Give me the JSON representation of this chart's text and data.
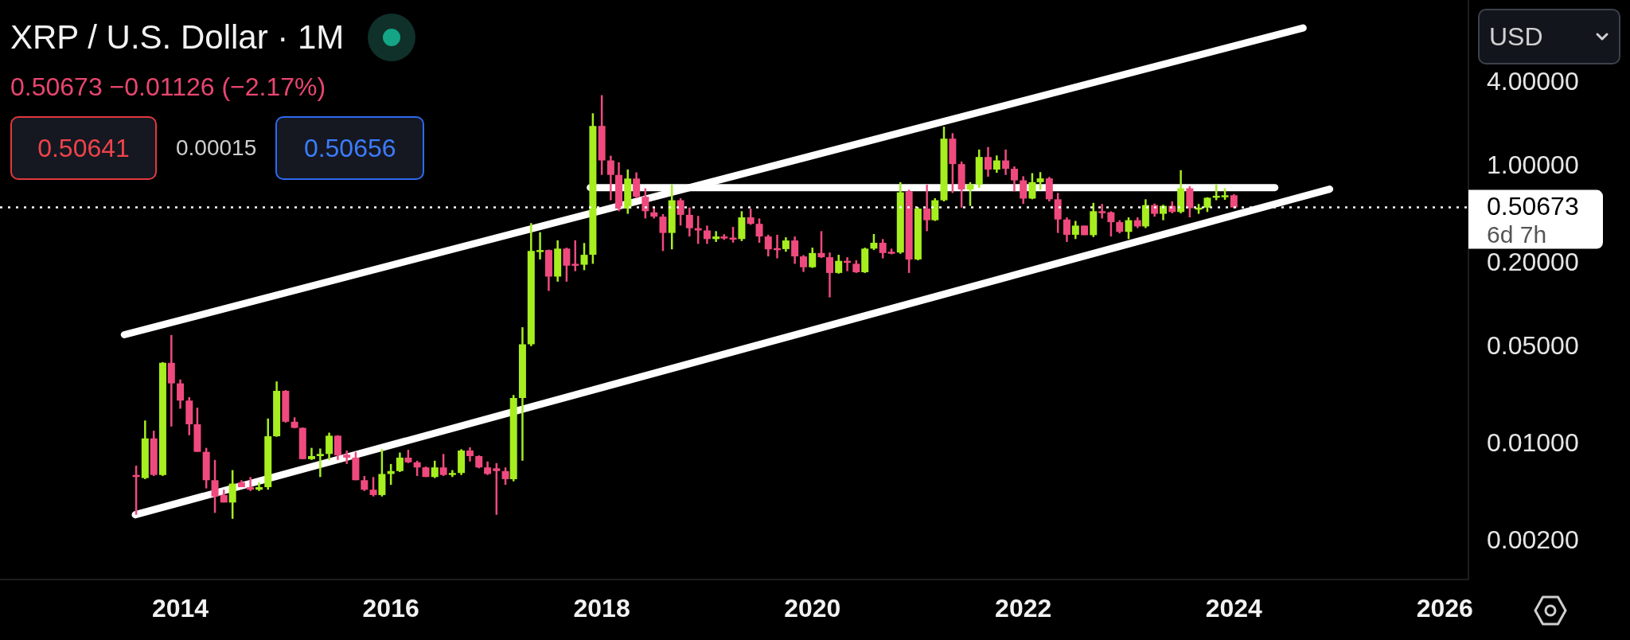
{
  "chart_data": {
    "type": "candlestick",
    "title": "XRP / U.S. Dollar · 1M",
    "subtitle": "0.50673 −0.01126 (−2.17%)",
    "x": [
      "2013-08",
      "2013-09",
      "2013-10",
      "2013-11",
      "2013-12",
      "2014-01",
      "2014-02",
      "2014-03",
      "2014-04",
      "2014-05",
      "2014-06",
      "2014-07",
      "2014-08",
      "2014-09",
      "2014-10",
      "2014-11",
      "2014-12",
      "2015-01",
      "2015-02",
      "2015-03",
      "2015-04",
      "2015-05",
      "2015-06",
      "2015-07",
      "2015-08",
      "2015-09",
      "2015-10",
      "2015-11",
      "2015-12",
      "2016-01",
      "2016-02",
      "2016-03",
      "2016-04",
      "2016-05",
      "2016-06",
      "2016-07",
      "2016-08",
      "2016-09",
      "2016-10",
      "2016-11",
      "2016-12",
      "2017-01",
      "2017-02",
      "2017-03",
      "2017-04",
      "2017-05",
      "2017-06",
      "2017-07",
      "2017-08",
      "2017-09",
      "2017-10",
      "2017-11",
      "2017-12",
      "2018-01",
      "2018-02",
      "2018-03",
      "2018-04",
      "2018-05",
      "2018-06",
      "2018-07",
      "2018-08",
      "2018-09",
      "2018-10",
      "2018-11",
      "2018-12",
      "2019-01",
      "2019-02",
      "2019-03",
      "2019-04",
      "2019-05",
      "2019-06",
      "2019-07",
      "2019-08",
      "2019-09",
      "2019-10",
      "2019-11",
      "2019-12",
      "2020-01",
      "2020-02",
      "2020-03",
      "2020-04",
      "2020-05",
      "2020-06",
      "2020-07",
      "2020-08",
      "2020-09",
      "2020-10",
      "2020-11",
      "2020-12",
      "2021-01",
      "2021-02",
      "2021-03",
      "2021-04",
      "2021-05",
      "2021-06",
      "2021-07",
      "2021-08",
      "2021-09",
      "2021-10",
      "2021-11",
      "2021-12",
      "2022-01",
      "2022-02",
      "2022-03",
      "2022-04",
      "2022-05",
      "2022-06",
      "2022-07",
      "2022-08",
      "2022-09",
      "2022-10",
      "2022-11",
      "2022-12",
      "2023-01",
      "2023-02",
      "2023-03",
      "2023-04",
      "2023-05",
      "2023-06",
      "2023-07",
      "2023-08",
      "2023-09",
      "2023-10",
      "2023-11",
      "2023-12",
      "2024-01"
    ],
    "ohlc": [
      [
        0.006,
        0.007,
        0.0031,
        0.0058
      ],
      [
        0.0057,
        0.0148,
        0.0056,
        0.011
      ],
      [
        0.011,
        0.0125,
        0.0059,
        0.006
      ],
      [
        0.006,
        0.039,
        0.0059,
        0.0385
      ],
      [
        0.0385,
        0.0611,
        0.0134,
        0.0274
      ],
      [
        0.0274,
        0.0292,
        0.018,
        0.0206
      ],
      [
        0.0206,
        0.0218,
        0.0116,
        0.0139
      ],
      [
        0.0139,
        0.0183,
        0.0088,
        0.0088
      ],
      [
        0.0088,
        0.0094,
        0.0048,
        0.0055
      ],
      [
        0.0055,
        0.0077,
        0.0032,
        0.0042
      ],
      [
        0.0043,
        0.0047,
        0.0038,
        0.0038
      ],
      [
        0.0038,
        0.0065,
        0.0029,
        0.0052
      ],
      [
        0.0053,
        0.0055,
        0.0049,
        0.0049
      ],
      [
        0.0049,
        0.0058,
        0.0046,
        0.0047
      ],
      [
        0.0047,
        0.0053,
        0.0046,
        0.0049
      ],
      [
        0.0049,
        0.0153,
        0.0047,
        0.0114
      ],
      [
        0.0114,
        0.0283,
        0.0113,
        0.0242
      ],
      [
        0.0242,
        0.0245,
        0.0143,
        0.0145
      ],
      [
        0.0145,
        0.0156,
        0.013,
        0.0131
      ],
      [
        0.0131,
        0.0132,
        0.0078,
        0.0078
      ],
      [
        0.0078,
        0.0094,
        0.0077,
        0.0082
      ],
      [
        0.0082,
        0.0093,
        0.0058,
        0.0085
      ],
      [
        0.0085,
        0.0121,
        0.0077,
        0.0115
      ],
      [
        0.0115,
        0.0116,
        0.0077,
        0.0083
      ],
      [
        0.0084,
        0.009,
        0.0072,
        0.008
      ],
      [
        0.008,
        0.0088,
        0.0055,
        0.0055
      ],
      [
        0.0055,
        0.0059,
        0.0046,
        0.0047
      ],
      [
        0.0047,
        0.0058,
        0.0042,
        0.0043
      ],
      [
        0.0043,
        0.0092,
        0.0042,
        0.0061
      ],
      [
        0.0061,
        0.0072,
        0.0051,
        0.0064
      ],
      [
        0.0064,
        0.0087,
        0.0063,
        0.008
      ],
      [
        0.008,
        0.0091,
        0.0073,
        0.0074
      ],
      [
        0.0074,
        0.0076,
        0.0059,
        0.0068
      ],
      [
        0.0068,
        0.0069,
        0.0058,
        0.0058
      ],
      [
        0.0058,
        0.0076,
        0.0057,
        0.0068
      ],
      [
        0.0068,
        0.0085,
        0.0059,
        0.006
      ],
      [
        0.006,
        0.0065,
        0.0058,
        0.0062
      ],
      [
        0.0062,
        0.0092,
        0.006,
        0.009
      ],
      [
        0.009,
        0.0095,
        0.0075,
        0.0082
      ],
      [
        0.0082,
        0.0083,
        0.0067,
        0.0068
      ],
      [
        0.0068,
        0.0075,
        0.006,
        0.0061
      ],
      [
        0.0067,
        0.0073,
        0.0031,
        0.0064
      ],
      [
        0.0064,
        0.0068,
        0.0051,
        0.0056
      ],
      [
        0.0056,
        0.0226,
        0.0054,
        0.0215
      ],
      [
        0.0215,
        0.0695,
        0.0076,
        0.0524
      ],
      [
        0.0524,
        0.391,
        0.0508,
        0.246
      ],
      [
        0.246,
        0.336,
        0.214,
        0.25
      ],
      [
        0.25,
        0.252,
        0.127,
        0.161
      ],
      [
        0.161,
        0.294,
        0.148,
        0.256
      ],
      [
        0.256,
        0.26,
        0.148,
        0.193
      ],
      [
        0.199,
        0.294,
        0.176,
        0.196
      ],
      [
        0.196,
        0.281,
        0.179,
        0.231
      ],
      [
        0.231,
        2.415,
        0.199,
        1.958
      ],
      [
        1.958,
        3.26,
        0.869,
        1.105
      ],
      [
        1.105,
        1.195,
        0.571,
        0.869
      ],
      [
        0.869,
        1.072,
        0.476,
        0.497
      ],
      [
        0.497,
        0.951,
        0.456,
        0.818
      ],
      [
        0.818,
        0.906,
        0.59,
        0.605
      ],
      [
        0.605,
        0.696,
        0.422,
        0.476
      ],
      [
        0.467,
        0.506,
        0.422,
        0.435
      ],
      [
        0.435,
        0.454,
        0.246,
        0.332
      ],
      [
        0.332,
        0.739,
        0.253,
        0.571
      ],
      [
        0.571,
        0.59,
        0.375,
        0.448
      ],
      [
        0.448,
        0.506,
        0.313,
        0.359
      ],
      [
        0.359,
        0.44,
        0.277,
        0.346
      ],
      [
        0.346,
        0.375,
        0.277,
        0.3
      ],
      [
        0.3,
        0.342,
        0.286,
        0.313
      ],
      [
        0.313,
        0.325,
        0.296,
        0.307
      ],
      [
        0.307,
        0.367,
        0.283,
        0.3
      ],
      [
        0.3,
        0.476,
        0.29,
        0.43
      ],
      [
        0.43,
        0.497,
        0.38,
        0.386
      ],
      [
        0.386,
        0.422,
        0.282,
        0.313
      ],
      [
        0.313,
        0.322,
        0.225,
        0.253
      ],
      [
        0.258,
        0.322,
        0.218,
        0.254
      ],
      [
        0.254,
        0.309,
        0.243,
        0.293
      ],
      [
        0.293,
        0.313,
        0.199,
        0.225
      ],
      [
        0.225,
        0.23,
        0.174,
        0.188
      ],
      [
        0.188,
        0.26,
        0.186,
        0.238
      ],
      [
        0.238,
        0.342,
        0.219,
        0.222
      ],
      [
        0.222,
        0.24,
        0.114,
        0.171
      ],
      [
        0.171,
        0.231,
        0.169,
        0.209
      ],
      [
        0.209,
        0.222,
        0.176,
        0.205
      ],
      [
        0.199,
        0.211,
        0.171,
        0.173
      ],
      [
        0.173,
        0.26,
        0.171,
        0.256
      ],
      [
        0.256,
        0.326,
        0.25,
        0.282
      ],
      [
        0.282,
        0.3,
        0.218,
        0.238
      ],
      [
        0.243,
        0.256,
        0.233,
        0.241
      ],
      [
        0.24,
        0.77,
        0.235,
        0.651
      ],
      [
        0.663,
        0.68,
        0.171,
        0.214
      ],
      [
        0.214,
        0.51,
        0.211,
        0.497
      ],
      [
        0.497,
        0.739,
        0.342,
        0.41
      ],
      [
        0.41,
        0.59,
        0.405,
        0.571
      ],
      [
        0.571,
        1.935,
        0.56,
        1.585
      ],
      [
        1.585,
        1.736,
        0.644,
        1.04
      ],
      [
        1.04,
        1.085,
        0.506,
        0.683
      ],
      [
        0.683,
        0.77,
        0.52,
        0.74
      ],
      [
        0.74,
        1.323,
        0.7,
        1.17
      ],
      [
        1.17,
        1.38,
        0.843,
        0.95
      ],
      [
        0.95,
        1.2,
        0.9,
        1.105
      ],
      [
        1.105,
        1.323,
        0.869,
        0.962
      ],
      [
        0.962,
        1.0,
        0.663,
        0.794
      ],
      [
        0.794,
        0.85,
        0.537,
        0.587
      ],
      [
        0.587,
        0.895,
        0.58,
        0.77
      ],
      [
        0.77,
        0.91,
        0.68,
        0.82
      ],
      [
        0.82,
        0.84,
        0.56,
        0.58
      ],
      [
        0.58,
        0.644,
        0.332,
        0.415
      ],
      [
        0.415,
        0.43,
        0.286,
        0.322
      ],
      [
        0.322,
        0.405,
        0.3,
        0.375
      ],
      [
        0.375,
        0.375,
        0.32,
        0.32
      ],
      [
        0.32,
        0.547,
        0.31,
        0.476
      ],
      [
        0.476,
        0.537,
        0.422,
        0.468
      ],
      [
        0.468,
        0.475,
        0.313,
        0.397
      ],
      [
        0.397,
        0.41,
        0.33,
        0.338
      ],
      [
        0.338,
        0.43,
        0.3,
        0.41
      ],
      [
        0.41,
        0.43,
        0.36,
        0.37
      ],
      [
        0.37,
        0.58,
        0.36,
        0.527
      ],
      [
        0.527,
        0.54,
        0.435,
        0.456
      ],
      [
        0.456,
        0.53,
        0.41,
        0.52
      ],
      [
        0.52,
        0.56,
        0.46,
        0.47
      ],
      [
        0.47,
        0.94,
        0.46,
        0.696
      ],
      [
        0.696,
        0.72,
        0.43,
        0.5
      ],
      [
        0.5,
        0.537,
        0.456,
        0.505
      ],
      [
        0.505,
        0.6,
        0.47,
        0.595
      ],
      [
        0.595,
        0.74,
        0.571,
        0.615
      ],
      [
        0.615,
        0.696,
        0.575,
        0.62
      ],
      [
        0.62,
        0.632,
        0.5,
        0.50673
      ]
    ],
    "colors": [
      "#ef4a7e",
      "#a6ee1f",
      "#ef4a7e",
      "#a6ee1f",
      "#ef4a7e",
      "#ef4a7e",
      "#ef4a7e",
      "#ef4a7e",
      "#ef4a7e",
      "#ef4a7e",
      "#ef4a7e",
      "#a6ee1f",
      "#ef4a7e",
      "#ef4a7e",
      "#a6ee1f",
      "#a6ee1f",
      "#a6ee1f",
      "#ef4a7e",
      "#ef4a7e",
      "#ef4a7e",
      "#a6ee1f",
      "#a6ee1f",
      "#a6ee1f",
      "#ef4a7e",
      "#ef4a7e",
      "#ef4a7e",
      "#ef4a7e",
      "#ef4a7e",
      "#a6ee1f",
      "#a6ee1f",
      "#a6ee1f",
      "#ef4a7e",
      "#ef4a7e",
      "#ef4a7e",
      "#a6ee1f",
      "#ef4a7e",
      "#a6ee1f",
      "#a6ee1f",
      "#ef4a7e",
      "#ef4a7e",
      "#ef4a7e",
      "#ef4a7e",
      "#ef4a7e",
      "#a6ee1f",
      "#a6ee1f",
      "#a6ee1f",
      "#a6ee1f",
      "#ef4a7e",
      "#a6ee1f",
      "#ef4a7e",
      "#ef4a7e",
      "#a6ee1f",
      "#a6ee1f",
      "#ef4a7e",
      "#ef4a7e",
      "#ef4a7e",
      "#a6ee1f",
      "#ef4a7e",
      "#ef4a7e",
      "#ef4a7e",
      "#ef4a7e",
      "#a6ee1f",
      "#ef4a7e",
      "#ef4a7e",
      "#ef4a7e",
      "#ef4a7e",
      "#a6ee1f",
      "#ef4a7e",
      "#ef4a7e",
      "#a6ee1f",
      "#ef4a7e",
      "#ef4a7e",
      "#ef4a7e",
      "#ef4a7e",
      "#a6ee1f",
      "#ef4a7e",
      "#ef4a7e",
      "#a6ee1f",
      "#ef4a7e",
      "#ef4a7e",
      "#a6ee1f",
      "#ef4a7e",
      "#ef4a7e",
      "#a6ee1f",
      "#a6ee1f",
      "#ef4a7e",
      "#ef4a7e",
      "#a6ee1f",
      "#ef4a7e",
      "#a6ee1f",
      "#ef4a7e",
      "#a6ee1f",
      "#a6ee1f",
      "#ef4a7e",
      "#ef4a7e",
      "#a6ee1f",
      "#a6ee1f",
      "#ef4a7e",
      "#a6ee1f",
      "#ef4a7e",
      "#ef4a7e",
      "#ef4a7e",
      "#a6ee1f",
      "#a6ee1f",
      "#ef4a7e",
      "#ef4a7e",
      "#ef4a7e",
      "#a6ee1f",
      "#ef4a7e",
      "#a6ee1f",
      "#ef4a7e",
      "#ef4a7e",
      "#ef4a7e",
      "#a6ee1f",
      "#ef4a7e",
      "#a6ee1f",
      "#ef4a7e",
      "#a6ee1f",
      "#ef4a7e",
      "#a6ee1f",
      "#ef4a7e",
      "#a6ee1f",
      "#a6ee1f",
      "#a6ee1f",
      "#a6ee1f",
      "#ef4a7e"
    ],
    "series": [
      {
        "type": "line",
        "x": [
          "2013-06-21",
          "2024-08-28"
        ],
        "values": [
          0.0614,
          9.94
        ],
        "color": "#ffffff"
      },
      {
        "type": "line",
        "x": [
          "2013-07-29",
          "2024-11-28"
        ],
        "values": [
          0.0031,
          0.687
        ],
        "color": "#ffffff"
      },
      {
        "type": "line",
        "x": [
          "2017-11-22",
          "2024-05-22"
        ],
        "values": [
          0.704,
          0.704
        ],
        "color": "#ffffff"
      }
    ],
    "ref_lines": [
      {
        "axis": "y",
        "value": 0.50673,
        "label": "0.50673",
        "color": "#ffffff",
        "line_style": "dotted"
      }
    ],
    "annotations": [
      "6d 7h",
      "0.50641",
      "0.00015",
      "0.50656",
      "USD"
    ],
    "log": "y",
    "ylim": [
      0.00106,
      15.8
    ],
    "yticks": [
      {
        "value": 4,
        "label": "4.00000"
      },
      {
        "value": 1,
        "label": "1.00000"
      },
      {
        "value": 0.2,
        "label": "0.20000"
      },
      {
        "value": 0.05,
        "label": "0.05000"
      },
      {
        "value": 0.01,
        "label": "0.01000"
      },
      {
        "value": 0.002,
        "label": "0.00200"
      }
    ],
    "xlim": [
      "2012-04-16",
      "2026-03-24"
    ],
    "xticks": [
      "2014",
      "2016",
      "2018",
      "2020",
      "2022",
      "2024",
      "2026"
    ]
  }
}
